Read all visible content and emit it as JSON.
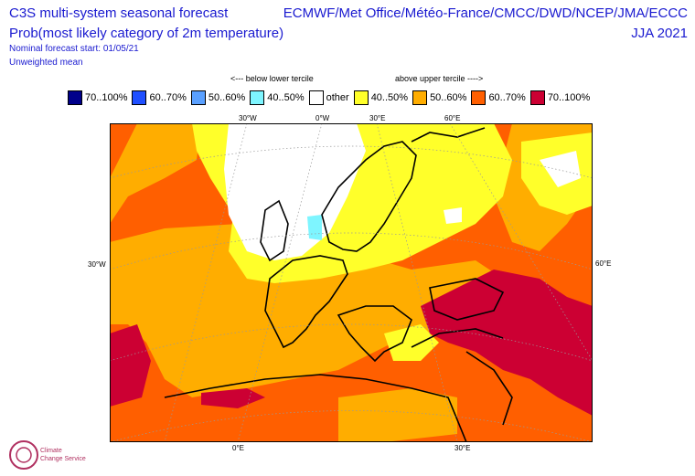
{
  "header": {
    "left_line1": "C3S multi-system seasonal forecast",
    "left_line2": "Prob(most likely category of 2m temperature)",
    "left_line3": "Nominal forecast start: 01/05/21",
    "left_line4": "Unweighted mean",
    "right_line1": "ECMWF/Met Office/Météo-France/CMCC/DWD/NCEP/JMA/ECCC",
    "right_line2": "JJA 2021"
  },
  "tercile": {
    "below": "<--- below lower tercile",
    "above": "above upper tercile ---->"
  },
  "legend": [
    {
      "label": "70..100%",
      "color": "#00008b"
    },
    {
      "label": "60..70%",
      "color": "#1f4fff"
    },
    {
      "label": "50..60%",
      "color": "#5aa0ff"
    },
    {
      "label": "40..50%",
      "color": "#7ef5ff"
    },
    {
      "label": "other",
      "color": "#ffffff"
    },
    {
      "label": "40..50%",
      "color": "#ffff2a"
    },
    {
      "label": "50..60%",
      "color": "#ffad00"
    },
    {
      "label": "60..70%",
      "color": "#ff5f00"
    },
    {
      "label": "70..100%",
      "color": "#cc0033"
    }
  ],
  "axis_labels": {
    "lon_top_1": "30°W",
    "lon_top_2": "0°W",
    "lon_top_3": "30°E",
    "lon_top_4": "60°E",
    "left_side": "30°W",
    "right_side": "60°E",
    "lon_bottom_1": "0°E",
    "lon_bottom_2": "30°E"
  },
  "logo": {
    "name": "climate-change-service-logo",
    "text_line1": "Climate",
    "text_line2": "Change Service"
  }
}
